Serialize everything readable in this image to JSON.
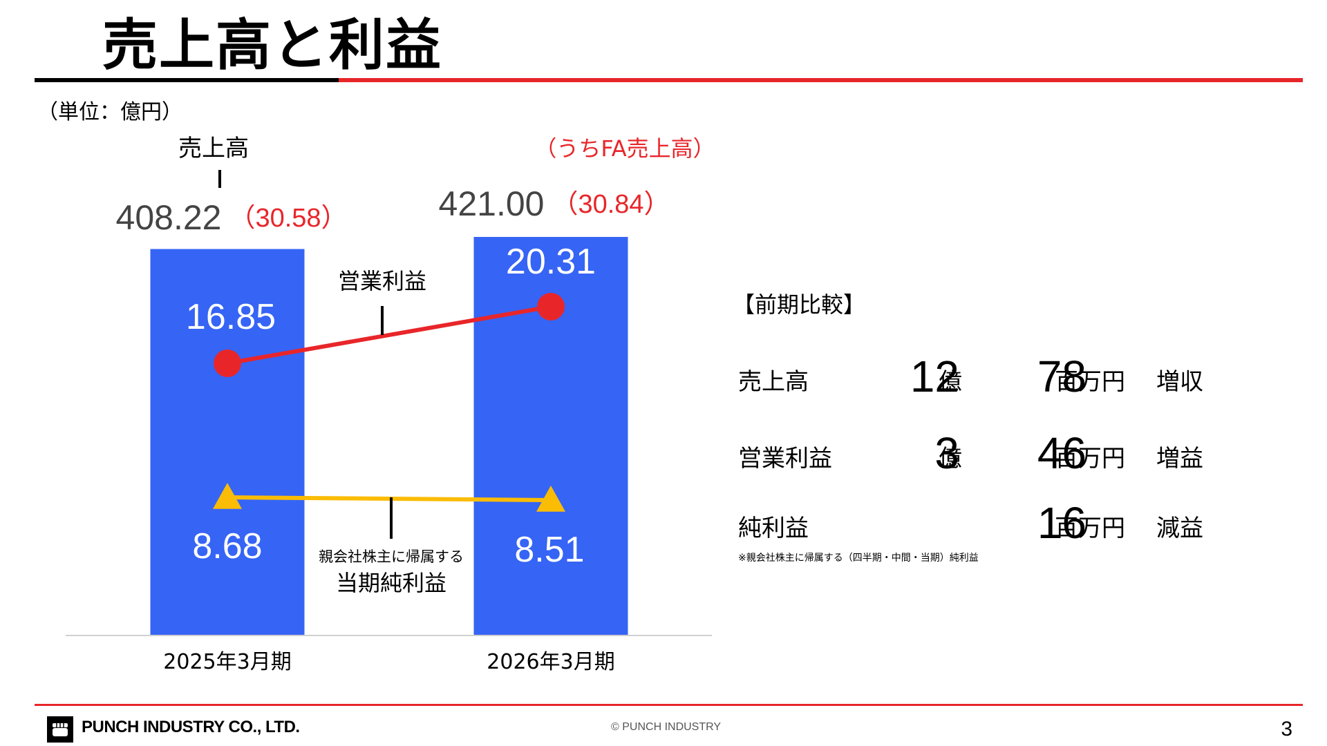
{
  "slide": {
    "title": "売上高と利益",
    "unit_note": "（単位：億円）",
    "page_number": "3"
  },
  "colors": {
    "bar": "#3664f5",
    "operating_profit_line": "#e8262a",
    "net_income_line": "#fbbc05",
    "accent_red": "#e8262a",
    "label_gray": "#444444"
  },
  "chart_data": {
    "type": "bar",
    "categories": [
      "2025年3月期",
      "2026年3月期"
    ],
    "ylim": [
      0,
      421
    ],
    "series": [
      {
        "name": "売上高",
        "type": "bar",
        "values": [
          408.22,
          421.0
        ],
        "labels": [
          "408.22",
          "421.00"
        ]
      },
      {
        "name": "うちFA売上高",
        "type": "annotation",
        "values": [
          30.58,
          30.84
        ],
        "labels": [
          "（30.58）",
          "（30.84）"
        ]
      },
      {
        "name": "営業利益",
        "type": "line",
        "marker": "circle",
        "values": [
          16.85,
          20.31
        ],
        "labels": [
          "16.85",
          "20.31"
        ]
      },
      {
        "name": "親会社株主に帰属する当期純利益",
        "type": "line",
        "marker": "triangle",
        "values": [
          8.68,
          8.51
        ],
        "labels": [
          "8.68",
          "8.51"
        ]
      }
    ],
    "callouts": {
      "sales": "売上高",
      "fa_sales": "（うちFA売上高）",
      "operating_profit": "営業利益",
      "net_income_line1": "親会社株主に帰属する",
      "net_income_line2": "当期純利益"
    },
    "grid": false,
    "legend": "none"
  },
  "comparison": {
    "title": "【前期比較】",
    "rows": [
      {
        "label": "売上高",
        "oku": "12",
        "oku_unit": "億",
        "man": "78",
        "man_unit": "百万円",
        "result": "増収"
      },
      {
        "label": "営業利益",
        "oku": "3",
        "oku_unit": "億",
        "man": "46",
        "man_unit": "百万円",
        "result": "増益"
      },
      {
        "label": "純利益",
        "oku": "",
        "oku_unit": "",
        "man": "16",
        "man_unit": "百万円",
        "result": "減益"
      }
    ],
    "footnote": "※親会社株主に帰属する（四半期・中間・当期）純利益"
  },
  "footer": {
    "company": "PUNCH INDUSTRY CO., LTD.",
    "copyright": "© PUNCH INDUSTRY",
    "logo_icon": "fist-icon"
  }
}
